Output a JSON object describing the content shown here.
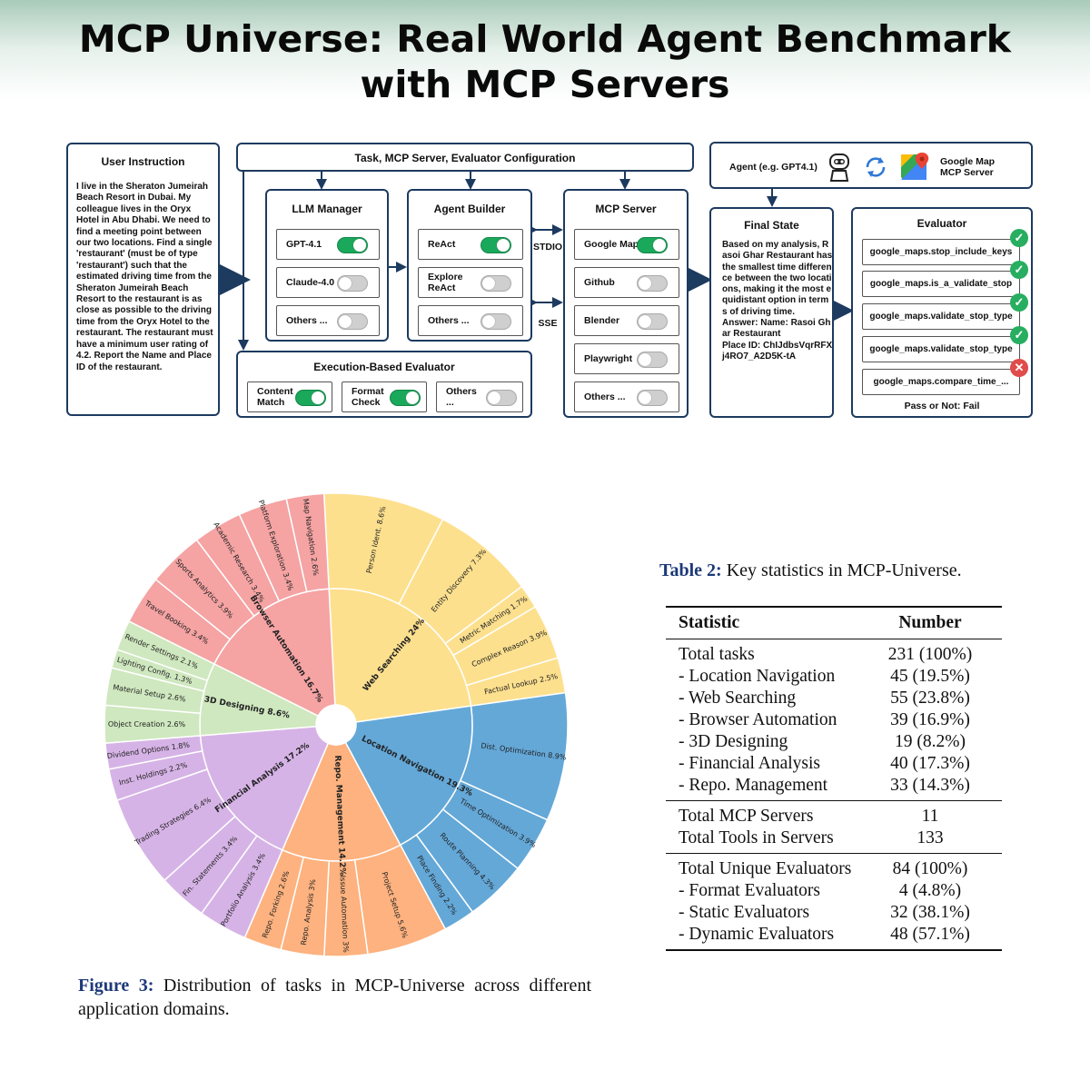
{
  "title": "MCP Universe: Real World Agent Benchmark\nwith MCP Servers",
  "diagram": {
    "user_instruction": {
      "title": "User Instruction",
      "text": "I live in the Sheraton Jumeirah Beach Resort in Dubai. My colleague lives in the Oryx Hotel in Abu Dhabi. We need to find a meeting point between our two locations. Find a single 'restaurant' (must be of type 'restaurant') such that the estimated driving time from the Sheraton Jumeirah Beach Resort to the restaurant is as close as possible to the driving time from the Oryx Hotel to the restaurant. The restaurant must have a minimum user rating of 4.2. Report the Name and Place ID of the restaurant."
    },
    "config_title": "Task, MCP Server, Evaluator Configuration",
    "llm_manager": {
      "title": "LLM Manager",
      "items": [
        {
          "label": "GPT-4.1",
          "on": true
        },
        {
          "label": "Claude-4.0",
          "on": false
        },
        {
          "label": "Others ...",
          "on": false
        }
      ]
    },
    "agent_builder": {
      "title": "Agent Builder",
      "items": [
        {
          "label": "ReAct",
          "on": true
        },
        {
          "label": "Explore\nReAct",
          "on": false
        },
        {
          "label": "Others ...",
          "on": false
        }
      ]
    },
    "protocols": {
      "stdio": "STDIO",
      "sse": "SSE"
    },
    "mcp_server": {
      "title": "MCP Server",
      "items": [
        {
          "label": "Google Map",
          "on": true
        },
        {
          "label": "Github",
          "on": false
        },
        {
          "label": "Blender",
          "on": false
        },
        {
          "label": "Playwright",
          "on": false
        },
        {
          "label": "Others ...",
          "on": false
        }
      ]
    },
    "execution_evaluator": {
      "title": "Execution-Based Evaluator",
      "items": [
        {
          "label": "Content\nMatch",
          "on": true
        },
        {
          "label": "Format\nCheck",
          "on": true
        },
        {
          "label": "Others\n...",
          "on": false
        }
      ]
    },
    "agent_header": {
      "agent": "Agent (e.g. GPT4.1)",
      "server": "Google Map\nMCP Server"
    },
    "final_state": {
      "title": "Final State",
      "text": "Based on my analysis, Rasoi Ghar Restaurant has the smallest time difference between the two locations, making it the most equidistant option in terms of driving time.\nAnswer: Name: Rasoi Ghar Restaurant\nPlace ID: ChIJdbsVqrRFXj4RO7_A2D5K-tA"
    },
    "evaluator": {
      "title": "Evaluator",
      "items": [
        {
          "label": "google_maps.stop_include_keys",
          "pass": true
        },
        {
          "label": "google_maps.is_a_validate_stop",
          "pass": true
        },
        {
          "label": "google_maps.validate_stop_type",
          "pass": true
        },
        {
          "label": "google_maps.validate_stop_type",
          "pass": true
        },
        {
          "label": "google_maps.compare_time_...",
          "pass": false
        }
      ],
      "result": "Pass or Not: Fail"
    }
  },
  "chart_data": {
    "type": "sunburst",
    "inner": [
      {
        "name": "Web Searching 24%",
        "value": 23.5,
        "color": "#fde08e"
      },
      {
        "name": "Location Navigation 19.3%",
        "value": 19.3,
        "color": "#64a8d8"
      },
      {
        "name": "Repo. Management 14.2%",
        "value": 14.2,
        "color": "#fdb27f"
      },
      {
        "name": "Financial Analysis 17.2%",
        "value": 17.2,
        "color": "#d6b3e6"
      },
      {
        "name": "3D Designing 8.6%",
        "value": 8.6,
        "color": "#cfe8bf"
      },
      {
        "name": "Browser Automation 16.7%",
        "value": 16.7,
        "color": "#f5a3a3"
      }
    ],
    "outer": [
      {
        "name": "Person Ident. 8.6%",
        "value": 8.6,
        "parent": 0
      },
      {
        "name": "Entity Discovery 7.3%",
        "value": 7.3,
        "parent": 0
      },
      {
        "name": "Metric Matching 1.7%",
        "value": 1.7,
        "parent": 0
      },
      {
        "name": "Complex Reason 3.9%",
        "value": 3.9,
        "parent": 0
      },
      {
        "name": "Factual Lookup 2.5%",
        "value": 2.5,
        "parent": 0
      },
      {
        "name": "Dist. Optimization 8.9%",
        "value": 8.9,
        "parent": 1
      },
      {
        "name": "Time Optimization 3.9%",
        "value": 3.9,
        "parent": 1
      },
      {
        "name": "Route Planning 4.3%",
        "value": 4.3,
        "parent": 1
      },
      {
        "name": "Place Finding 2.2%",
        "value": 2.2,
        "parent": 1
      },
      {
        "name": "Project Setup 5.6%",
        "value": 5.6,
        "parent": 2
      },
      {
        "name": "Issue Automation 3%",
        "value": 3.0,
        "parent": 2
      },
      {
        "name": "Repo. Analysis 3%",
        "value": 3.0,
        "parent": 2
      },
      {
        "name": "Repo. Forking 2.6%",
        "value": 2.6,
        "parent": 2
      },
      {
        "name": "Portfolio Analysis 3.4%",
        "value": 3.4,
        "parent": 3
      },
      {
        "name": "Fin. Statements 3.4%",
        "value": 3.4,
        "parent": 3
      },
      {
        "name": "Trading Strategies 6.4%",
        "value": 6.4,
        "parent": 3
      },
      {
        "name": "Inst. Holdings 2.2%",
        "value": 2.2,
        "parent": 3
      },
      {
        "name": "Dividend Options 1.8%",
        "value": 1.8,
        "parent": 3
      },
      {
        "name": "Object Creation 2.6%",
        "value": 2.6,
        "parent": 4
      },
      {
        "name": "Material Setup 2.6%",
        "value": 2.6,
        "parent": 4
      },
      {
        "name": "Lighting Config. 1.3%",
        "value": 1.3,
        "parent": 4
      },
      {
        "name": "Render Settings 2.1%",
        "value": 2.1,
        "parent": 4
      },
      {
        "name": "Travel Booking 3.4%",
        "value": 3.4,
        "parent": 5
      },
      {
        "name": "Sports Analytics 3.9%",
        "value": 3.9,
        "parent": 5
      },
      {
        "name": "Academic Research 3.4%",
        "value": 3.4,
        "parent": 5
      },
      {
        "name": "Platform Exploration 3.4%",
        "value": 3.4,
        "parent": 5
      },
      {
        "name": "Map Navigation 2.6%",
        "value": 2.6,
        "parent": 5
      }
    ]
  },
  "table": {
    "caption_label": "Table 2:",
    "caption_text": " Key statistics in MCP-Universe.",
    "headers": [
      "Statistic",
      "Number"
    ],
    "groups": [
      [
        [
          "Total tasks",
          "231 (100%)"
        ],
        [
          "- Location Navigation",
          "45 (19.5%)"
        ],
        [
          "- Web Searching",
          "55 (23.8%)"
        ],
        [
          "- Browser Automation",
          "39 (16.9%)"
        ],
        [
          "- 3D Designing",
          "19 (8.2%)"
        ],
        [
          "- Financial Analysis",
          "40 (17.3%)"
        ],
        [
          "- Repo. Management",
          "33 (14.3%)"
        ]
      ],
      [
        [
          "Total MCP Servers",
          "11"
        ],
        [
          "Total Tools in Servers",
          "133"
        ]
      ],
      [
        [
          "Total Unique Evaluators",
          "84 (100%)"
        ],
        [
          "- Format Evaluators",
          "4 (4.8%)"
        ],
        [
          "- Static Evaluators",
          "32 (38.1%)"
        ],
        [
          "- Dynamic Evaluators",
          "48 (57.1%)"
        ]
      ]
    ]
  },
  "figure_caption": {
    "label": "Figure 3:",
    "text": " Distribution of tasks in MCP-Universe across different application domains."
  }
}
